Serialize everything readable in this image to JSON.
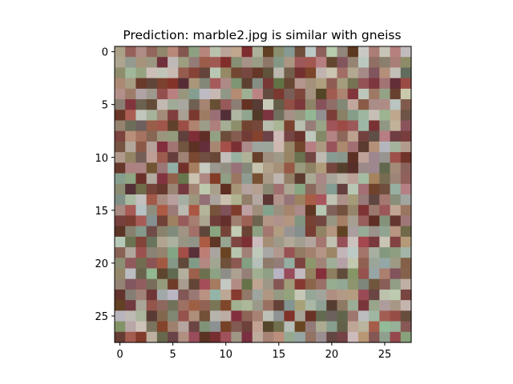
{
  "chart_data": {
    "type": "heatmap",
    "title": "Prediction: marble2.jpg is similar with gneiss",
    "xlabel": "",
    "ylabel": "",
    "grid": false,
    "image_size": [
      28,
      28
    ],
    "xlim": [
      -0.5,
      27.5
    ],
    "ylim": [
      27.5,
      -0.5
    ],
    "xticks": [
      0,
      5,
      10,
      15,
      20,
      25
    ],
    "xtick_labels": [
      "0",
      "5",
      "10",
      "15",
      "20",
      "25"
    ],
    "yticks": [
      0,
      5,
      10,
      15,
      20,
      25
    ],
    "ytick_labels": [
      "0",
      "5",
      "10",
      "15",
      "20",
      "25"
    ],
    "palette": [
      "#6b4a3e",
      "#7a3a34",
      "#8c5c52",
      "#9a7a6c",
      "#a89484",
      "#b5a99a",
      "#8a8a72",
      "#6e6a52",
      "#9fb09c",
      "#c2c0b8",
      "#a0544f",
      "#5e3a2e",
      "#b08a7c",
      "#8e9a88"
    ]
  }
}
